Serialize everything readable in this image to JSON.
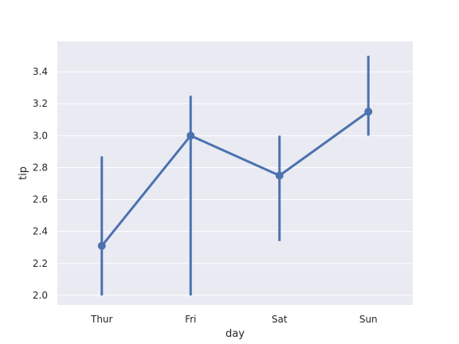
{
  "chart_data": {
    "type": "line",
    "title": "",
    "xlabel": "day",
    "ylabel": "tip",
    "categories": [
      "Thur",
      "Fri",
      "Sat",
      "Sun"
    ],
    "series": [
      {
        "values": [
          2.31,
          3.0,
          2.75,
          3.15
        ],
        "ci_low": [
          2.0,
          2.0,
          2.34,
          3.0
        ],
        "ci_high": [
          2.87,
          3.25,
          3.0,
          3.5
        ]
      }
    ],
    "ylim": [
      1.94,
      3.59
    ],
    "yticks": [
      "2.0",
      "2.2",
      "2.4",
      "2.6",
      "2.8",
      "3.0",
      "3.2",
      "3.4"
    ],
    "grid": true,
    "colors": {
      "series": "#4c72b0",
      "panel": "#eaeaf2",
      "grid": "#ffffff"
    }
  }
}
